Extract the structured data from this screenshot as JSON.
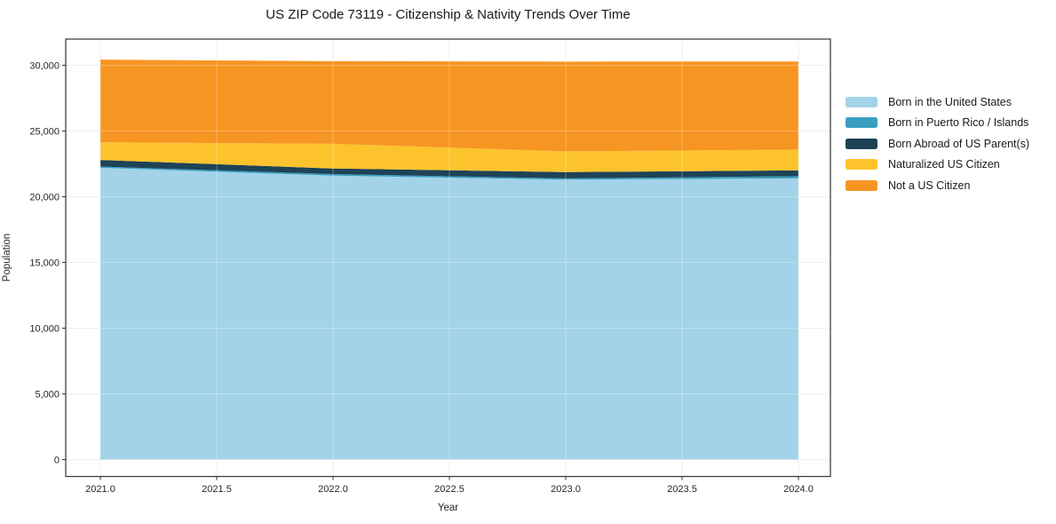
{
  "title": "US ZIP Code 73119 - Citizenship & Nativity Trends Over Time",
  "chart_data": {
    "type": "area",
    "stacked": true,
    "title": "US ZIP Code 73119 - Citizenship & Nativity Trends Over Time",
    "xlabel": "Year",
    "ylabel": "Population",
    "x": [
      2021,
      2022,
      2023,
      2024
    ],
    "xlim": [
      2021.0,
      2024.0
    ],
    "ylim": [
      0,
      30000
    ],
    "grid": true,
    "legend_position": "right",
    "xticks": {
      "values": [
        2021.0,
        2021.5,
        2022.0,
        2022.5,
        2023.0,
        2023.5,
        2024.0
      ],
      "labels": [
        "2021.0",
        "2021.5",
        "2022.0",
        "2022.5",
        "2023.0",
        "2023.5",
        "2024.0"
      ]
    },
    "yticks": {
      "values": [
        0,
        5000,
        10000,
        15000,
        20000,
        25000,
        30000
      ],
      "labels": [
        "0",
        "5,000",
        "10,000",
        "15,000",
        "20,000",
        "25,000",
        "30,000"
      ]
    },
    "series": [
      {
        "name": "Born in the United States",
        "color": "#a3d3e8",
        "values": [
          22200,
          21600,
          21300,
          21400
        ]
      },
      {
        "name": "Born in Puerto Rico / Islands",
        "color": "#39a0c2",
        "values": [
          100,
          120,
          90,
          160
        ]
      },
      {
        "name": "Born Abroad of US Parent(s)",
        "color": "#1e4356",
        "values": [
          500,
          430,
          480,
          450
        ]
      },
      {
        "name": "Naturalized US Citizen",
        "color": "#fcc32d",
        "values": [
          1350,
          1880,
          1580,
          1580
        ]
      },
      {
        "name": "Not a US Citizen",
        "color": "#f79522",
        "values": [
          6280,
          6280,
          6830,
          6700
        ]
      }
    ],
    "totals": [
      30430,
      30310,
      30280,
      30290
    ],
    "colors": {
      "grid_under": "#e9e9e9",
      "grid_over": "rgba(255,255,255,0.30)",
      "spine": "#333333",
      "tick_label": "#262626",
      "background": "#ffffff"
    }
  }
}
